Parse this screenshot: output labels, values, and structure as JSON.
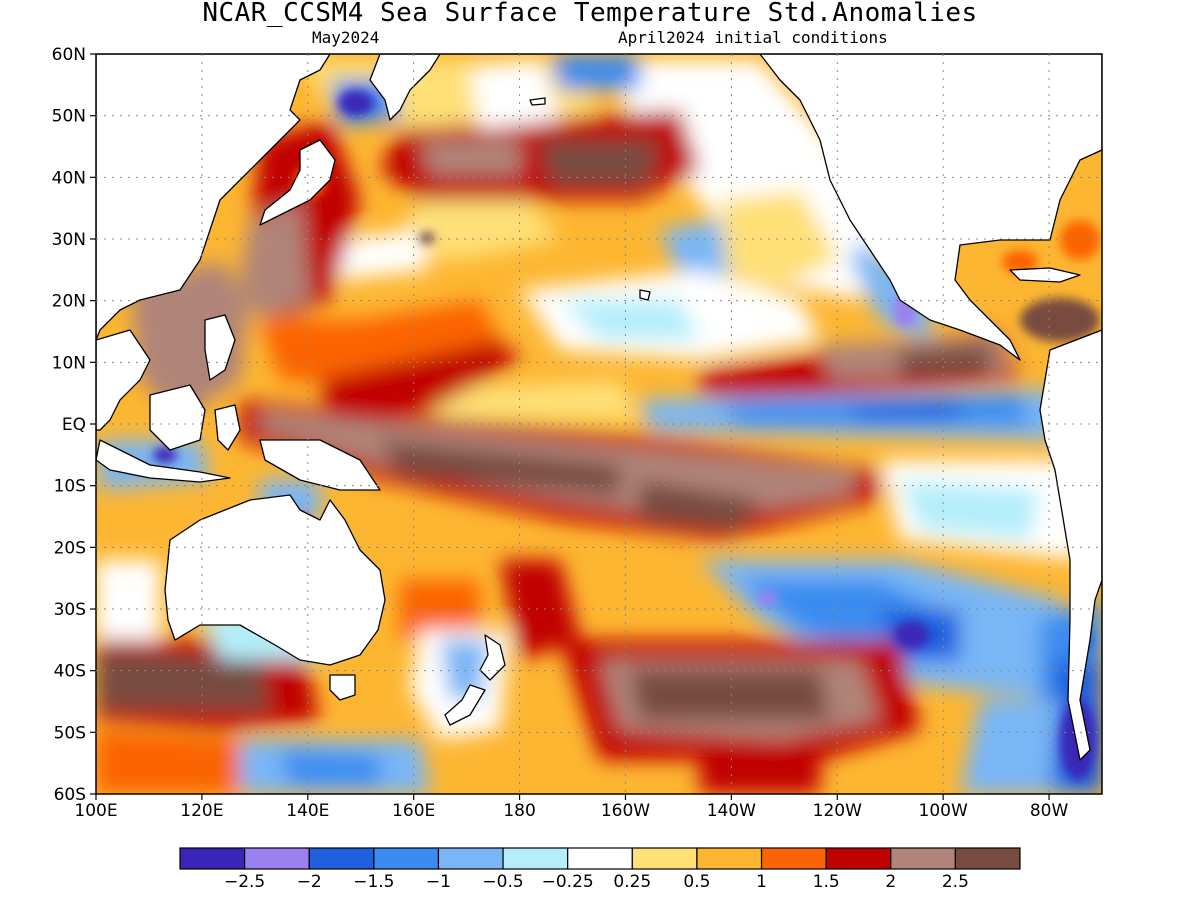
{
  "title": "NCAR_CCSM4 Sea Surface Temperature Std.Anomalies",
  "subtitle_left": "May2024",
  "subtitle_right": "April2024 initial conditions",
  "map": {
    "lon_range": [
      100,
      290
    ],
    "lat_range": [
      -60,
      60
    ],
    "lat_ticks": [
      {
        "value": 60,
        "label": "60N"
      },
      {
        "value": 50,
        "label": "50N"
      },
      {
        "value": 40,
        "label": "40N"
      },
      {
        "value": 30,
        "label": "30N"
      },
      {
        "value": 20,
        "label": "20N"
      },
      {
        "value": 10,
        "label": "10N"
      },
      {
        "value": 0,
        "label": "EQ"
      },
      {
        "value": -10,
        "label": "10S"
      },
      {
        "value": -20,
        "label": "20S"
      },
      {
        "value": -30,
        "label": "30S"
      },
      {
        "value": -40,
        "label": "40S"
      },
      {
        "value": -50,
        "label": "50S"
      },
      {
        "value": -60,
        "label": "60S"
      }
    ],
    "lon_ticks": [
      {
        "value": 100,
        "label": "100E"
      },
      {
        "value": 120,
        "label": "120E"
      },
      {
        "value": 140,
        "label": "140E"
      },
      {
        "value": 160,
        "label": "160E"
      },
      {
        "value": 180,
        "label": "180"
      },
      {
        "value": 200,
        "label": "160W"
      },
      {
        "value": 220,
        "label": "140W"
      },
      {
        "value": 240,
        "label": "120W"
      },
      {
        "value": 260,
        "label": "100W"
      },
      {
        "value": 280,
        "label": "80W"
      }
    ],
    "gridlines": true
  },
  "legend": {
    "colors": [
      "#3a25b8",
      "#9b80f0",
      "#1e60e0",
      "#3a8cf0",
      "#78b6f6",
      "#b4eefa",
      "#ffffff",
      "#fee077",
      "#fdb631",
      "#fb6305",
      "#c10000",
      "#b08478",
      "#784c40"
    ],
    "labels": [
      "-2.5",
      "-2",
      "-1.5",
      "-1",
      "-0.5",
      "-0.25",
      "0.25",
      "0.5",
      "1",
      "1.5",
      "2",
      "2.5"
    ]
  }
}
